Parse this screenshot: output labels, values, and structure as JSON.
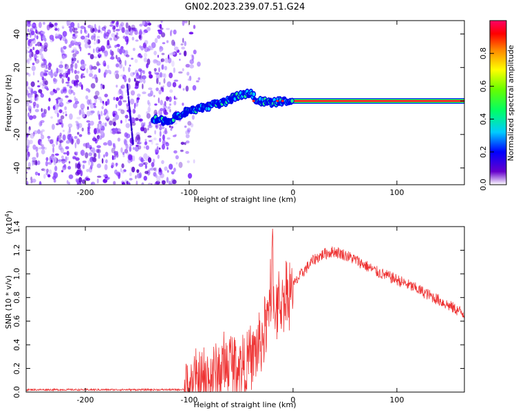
{
  "chart_data": [
    {
      "type": "heatmap",
      "title": "GN02.2023.239.07.51.G24",
      "xlabel": "Height of straight line (km)",
      "ylabel": "Frequency (Hz)",
      "xlim": [
        -257,
        165
      ],
      "ylim": [
        -50,
        48
      ],
      "x_ticks": [
        -200,
        -100,
        0,
        100
      ],
      "x_tick_labels": [
        "-200",
        "-100",
        "0",
        "100"
      ],
      "y_ticks": [
        -40,
        -20,
        0,
        20,
        40
      ],
      "y_tick_labels": [
        "-40",
        "-20",
        "0",
        "20",
        "40"
      ],
      "colorbar": {
        "label": "Normalized spectral amplitude",
        "range": [
          0,
          1
        ],
        "ticks": [
          0.0,
          0.2,
          0.4,
          0.6,
          0.8
        ],
        "tick_labels": [
          "0.0",
          "0.2",
          "0.4",
          "0.6",
          "0.8"
        ],
        "colormap": [
          "#ffffff",
          "#6600cc",
          "#0000ff",
          "#00ccff",
          "#00ff66",
          "#66ff00",
          "#ffff00",
          "#ff8800",
          "#ff0000",
          "#ff0066"
        ]
      },
      "ridge": {
        "x": [
          -135,
          -120,
          -105,
          -95,
          -85,
          -75,
          -65,
          -55,
          -45,
          -40,
          -35,
          -30,
          -20,
          -10,
          0,
          165
        ],
        "y": [
          -11,
          -12,
          -7,
          -5,
          -4,
          -2,
          -1,
          3,
          4,
          5,
          0,
          0,
          -1,
          0,
          0,
          0
        ]
      },
      "noise_region": [
        -257,
        -105
      ],
      "grid": false
    },
    {
      "type": "line",
      "xlabel": "Height of straight line (km)",
      "ylabel": "SNR (10 * v/v)",
      "y_scale_note": "(x10",
      "y_scale_exp": "4",
      "xlim": [
        -257,
        165
      ],
      "ylim": [
        0,
        1.4
      ],
      "x_ticks": [
        -200,
        -100,
        0,
        100
      ],
      "x_tick_labels": [
        "-200",
        "-100",
        "0",
        "100"
      ],
      "y_ticks": [
        0.0,
        0.2,
        0.4,
        0.6,
        0.8,
        1.0,
        1.2,
        1.4
      ],
      "y_tick_labels": [
        "0.0",
        "0.2",
        "0.4",
        "0.6",
        "0.8",
        "1.0",
        "1.2",
        "1.4"
      ],
      "series_color": "#ee3333",
      "x": [
        -257,
        -200,
        -150,
        -110,
        -100,
        -90,
        -80,
        -70,
        -60,
        -50,
        -40,
        -35,
        -30,
        -25,
        -20,
        -15,
        -10,
        -5,
        0,
        10,
        20,
        30,
        40,
        50,
        60,
        80,
        100,
        120,
        140,
        165
      ],
      "y": [
        0.02,
        0.02,
        0.02,
        0.02,
        0.03,
        0.07,
        0.12,
        0.18,
        0.25,
        0.22,
        0.28,
        0.35,
        0.45,
        0.6,
        0.7,
        0.72,
        0.78,
        0.85,
        0.9,
        1.02,
        1.12,
        1.17,
        1.19,
        1.16,
        1.12,
        1.02,
        0.95,
        0.87,
        0.78,
        0.66
      ],
      "grid": false
    }
  ]
}
